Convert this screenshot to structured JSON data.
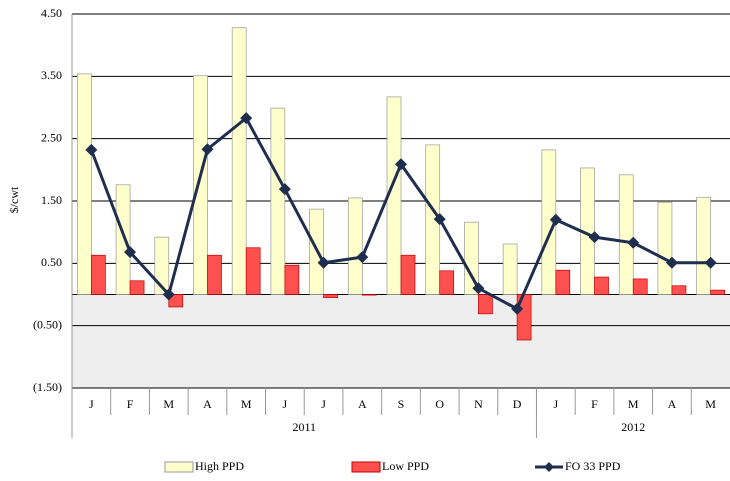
{
  "chart_data": {
    "type": "bar_line",
    "y_label": "$/cwt",
    "categories": [
      "J",
      "F",
      "M",
      "A",
      "M",
      "J",
      "J",
      "A",
      "S",
      "O",
      "N",
      "D",
      "J",
      "F",
      "M",
      "A",
      "M"
    ],
    "x_groups": [
      {
        "label": "2011",
        "size": 12
      },
      {
        "label": "2012",
        "size": 5
      }
    ],
    "series": [
      {
        "name": "High PPD",
        "type": "bar",
        "color": "#ffffcc",
        "values": [
          3.54,
          1.76,
          0.92,
          3.51,
          4.28,
          2.99,
          1.37,
          1.55,
          3.17,
          2.4,
          1.16,
          0.81,
          2.32,
          2.03,
          1.92,
          1.48,
          1.56
        ]
      },
      {
        "name": "Low PPD",
        "type": "bar",
        "color": "#ff5050",
        "values": [
          0.63,
          0.22,
          -0.2,
          0.63,
          0.75,
          0.47,
          -0.05,
          -0.01,
          0.63,
          0.38,
          -0.31,
          -0.73,
          0.39,
          0.28,
          0.25,
          0.14,
          0.07
        ]
      },
      {
        "name": "FO 33 PPD",
        "type": "line",
        "color": "#1f2d4f",
        "values": [
          2.32,
          0.68,
          0.0,
          2.33,
          2.83,
          1.69,
          0.51,
          0.6,
          2.09,
          1.21,
          0.1,
          -0.23,
          1.2,
          0.92,
          0.83,
          0.51,
          0.51
        ]
      }
    ],
    "ylim": [
      -1.5,
      4.5
    ],
    "yticks": [
      {
        "value": -1.5,
        "label": "(1.50)"
      },
      {
        "value": -0.5,
        "label": "(0.50)"
      },
      {
        "value": 0.5,
        "label": "0.50"
      },
      {
        "value": 1.5,
        "label": "1.50"
      },
      {
        "value": 2.5,
        "label": "2.50"
      },
      {
        "value": 3.5,
        "label": "3.50"
      },
      {
        "value": 4.5,
        "label": "4.50"
      }
    ],
    "grid": true,
    "legend": "bottom"
  }
}
